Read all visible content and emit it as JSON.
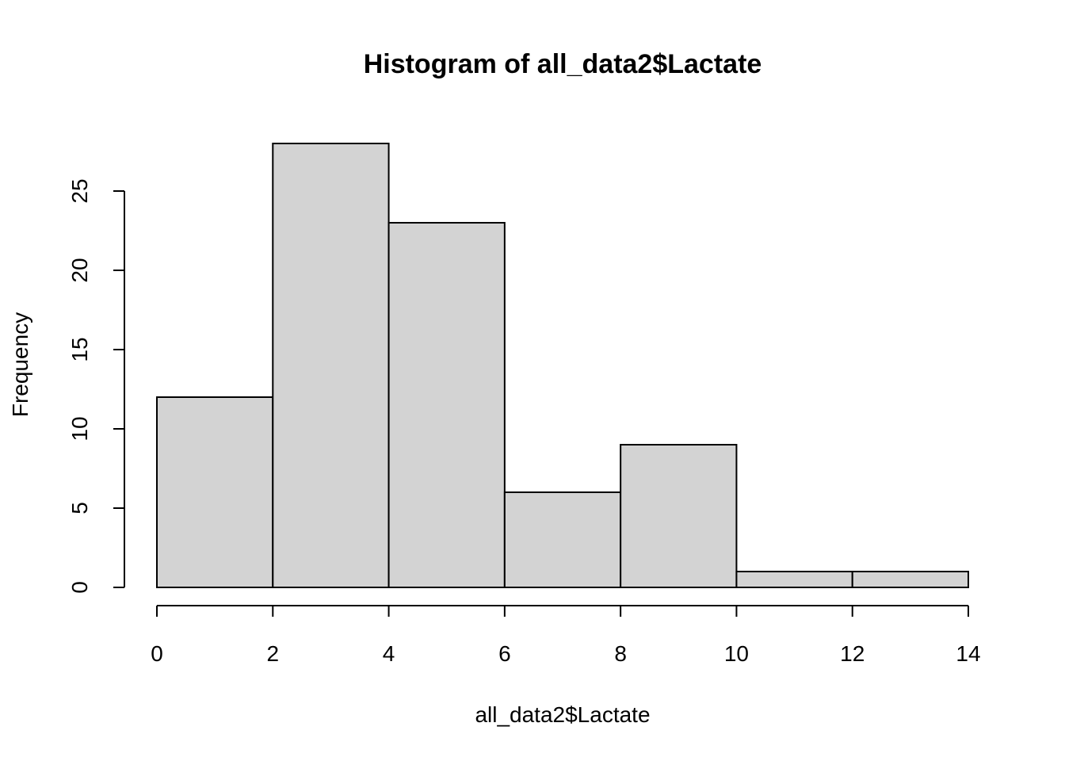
{
  "chart_data": {
    "type": "bar",
    "title": "Histogram of all_data2$Lactate",
    "xlabel": "all_data2$Lactate",
    "ylabel": "Frequency",
    "bins": [
      {
        "x0": 0,
        "x1": 2,
        "count": 12
      },
      {
        "x0": 2,
        "x1": 4,
        "count": 28
      },
      {
        "x0": 4,
        "x1": 6,
        "count": 23
      },
      {
        "x0": 6,
        "x1": 8,
        "count": 6
      },
      {
        "x0": 8,
        "x1": 10,
        "count": 9
      },
      {
        "x0": 10,
        "x1": 12,
        "count": 1
      },
      {
        "x0": 12,
        "x1": 14,
        "count": 1
      }
    ],
    "x_ticks": [
      "0",
      "2",
      "4",
      "6",
      "8",
      "10",
      "12",
      "14"
    ],
    "y_ticks": [
      "0",
      "5",
      "10",
      "15",
      "20",
      "25"
    ],
    "xlim": [
      0,
      14
    ],
    "ylim": [
      0,
      28
    ],
    "grid": false,
    "bar_color": "#d3d3d3",
    "edge_color": "#000000"
  }
}
